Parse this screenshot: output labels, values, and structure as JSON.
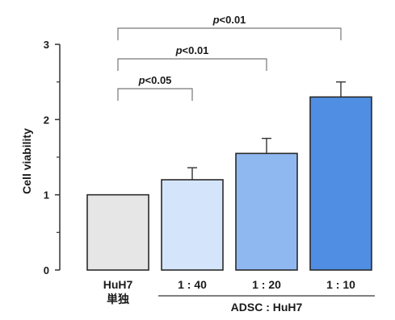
{
  "chart_data": {
    "type": "bar",
    "categories": [
      "HuH7 単独",
      "1 : 40",
      "1 : 20",
      "1 : 10"
    ],
    "category_lines": [
      [
        "HuH7",
        "単独"
      ],
      [
        "1 : 40"
      ],
      [
        "1 : 20"
      ],
      [
        "1 : 10"
      ]
    ],
    "values": [
      1.0,
      1.2,
      1.55,
      2.3
    ],
    "errors": [
      0,
      0.16,
      0.2,
      0.2
    ],
    "bar_colors": [
      "#e6e6e6",
      "#d4e5fb",
      "#8fb8f0",
      "#4f8ee3"
    ],
    "ylabel": "Cell viability",
    "ylim": [
      0,
      3
    ],
    "yticks": [
      0,
      1,
      2,
      3
    ],
    "group_label": "ADSC : HuH7",
    "group_categories": [
      1,
      3
    ],
    "significance": [
      {
        "from": 0,
        "to": 1,
        "p": "p",
        "rest": "<0.05"
      },
      {
        "from": 0,
        "to": 2,
        "p": "p",
        "rest": "<0.01"
      },
      {
        "from": 0,
        "to": 3,
        "p": "p",
        "rest": "<0.01"
      }
    ]
  }
}
